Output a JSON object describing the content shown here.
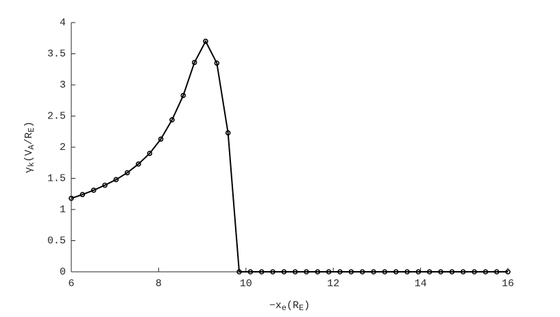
{
  "chart_data": {
    "type": "line",
    "x": [
      6,
      6.256,
      6.513,
      6.769,
      7.026,
      7.282,
      7.538,
      7.795,
      8.051,
      8.308,
      8.564,
      8.821,
      9.077,
      9.333,
      9.59,
      9.846,
      10.103,
      10.359,
      10.615,
      10.872,
      11.128,
      11.385,
      11.641,
      11.897,
      12.154,
      12.41,
      12.667,
      12.923,
      13.179,
      13.436,
      13.692,
      13.949,
      14.205,
      14.462,
      14.718,
      14.974,
      15.231,
      15.487,
      15.744,
      16
    ],
    "series": [
      {
        "color": "#000000",
        "values": [
          1.18,
          1.24,
          1.31,
          1.39,
          1.48,
          1.59,
          1.73,
          1.9,
          2.13,
          2.44,
          2.83,
          3.36,
          3.7,
          3.35,
          2.23,
          0,
          0,
          0,
          0,
          0,
          0,
          0,
          0,
          0,
          0,
          0,
          0,
          0,
          0,
          0,
          0,
          0,
          0,
          0,
          0,
          0,
          0,
          0,
          0,
          0
        ]
      }
    ],
    "xlim": [
      6,
      16
    ],
    "xticks": [
      6,
      8,
      10,
      12,
      14,
      16
    ],
    "ylim": [
      0,
      4
    ],
    "yticks": [
      0,
      0.5,
      1,
      1.5,
      2,
      2.5,
      3,
      3.5,
      4
    ],
    "xlabel_parts": [
      {
        "text": "−x"
      },
      {
        "text": "e",
        "sub": true
      },
      {
        "text": "(R"
      },
      {
        "text": "E",
        "sub": true
      },
      {
        "text": ")"
      }
    ],
    "ylabel_parts": [
      {
        "text": "γ"
      },
      {
        "text": "k",
        "sub": true
      },
      {
        "text": "(V"
      },
      {
        "text": "A",
        "sub": true
      },
      {
        "text": "/R"
      },
      {
        "text": "E",
        "sub": true
      },
      {
        "text": ")"
      }
    ]
  }
}
